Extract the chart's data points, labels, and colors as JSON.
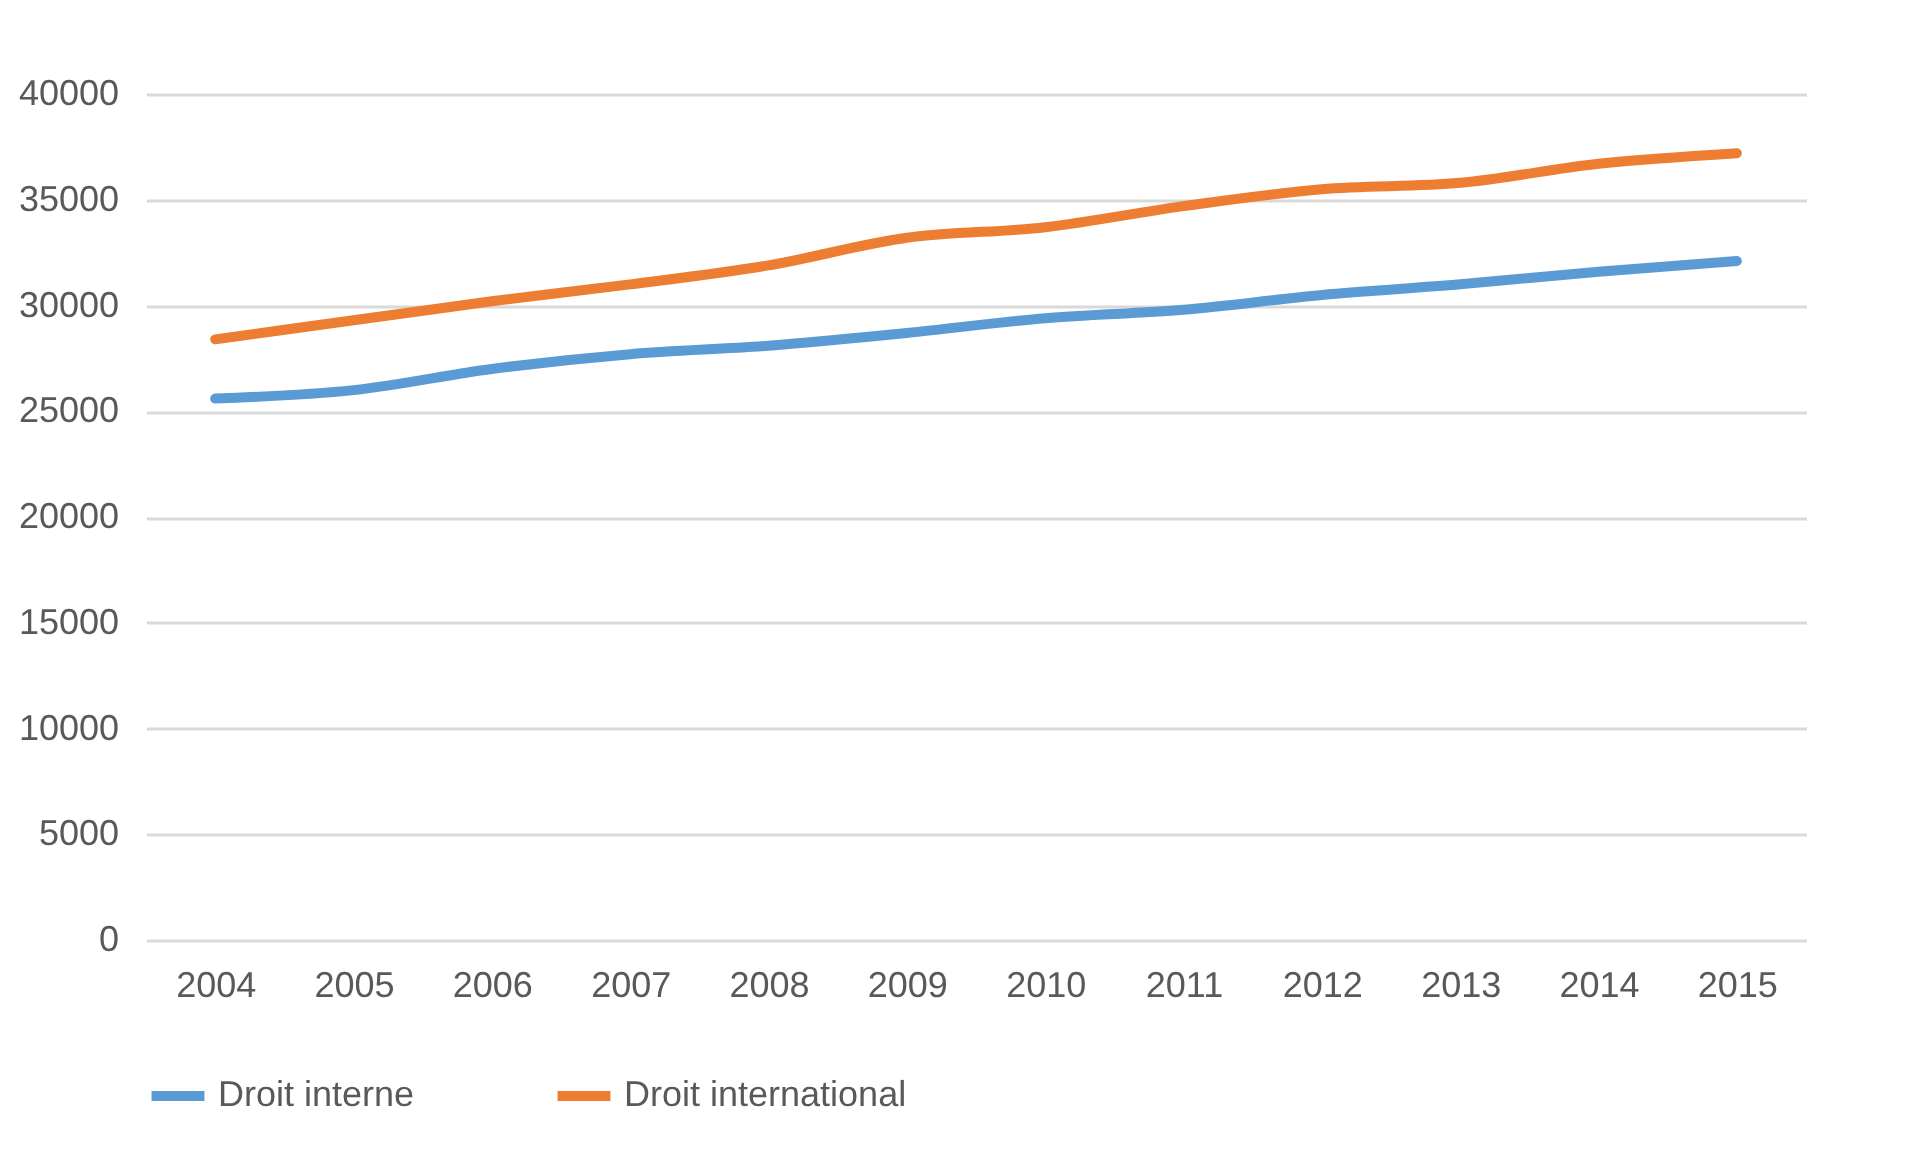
{
  "chart_data": {
    "type": "line",
    "categories": [
      "2004",
      "2005",
      "2006",
      "2007",
      "2008",
      "2009",
      "2010",
      "2011",
      "2012",
      "2013",
      "2014",
      "2015"
    ],
    "series": [
      {
        "name": "Droit interne",
        "color": "#5b9bd5",
        "values": [
          25600,
          26000,
          27000,
          27700,
          28100,
          28700,
          29400,
          29800,
          30500,
          31000,
          31600,
          32100
        ]
      },
      {
        "name": "Droit international",
        "color": "#ed7d31",
        "values": [
          28400,
          29300,
          30200,
          31000,
          31900,
          33200,
          33700,
          34700,
          35500,
          35800,
          36700,
          37200
        ]
      }
    ],
    "ylim": [
      0,
      40000
    ],
    "yticks": [
      0,
      5000,
      10000,
      15000,
      20000,
      25000,
      30000,
      35000,
      40000
    ],
    "grid": "y",
    "legend": "bottom",
    "marker": "none",
    "line_style": "solid"
  }
}
